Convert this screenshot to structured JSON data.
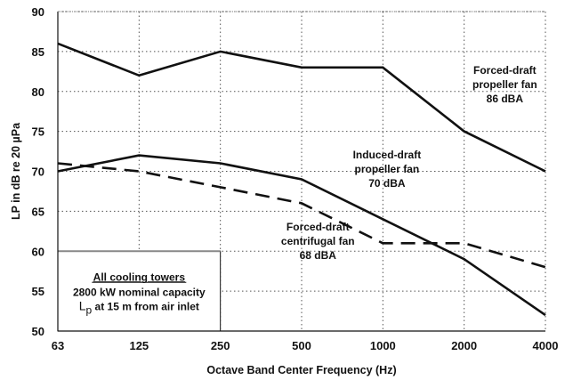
{
  "chart_data": {
    "type": "line",
    "title": "",
    "xlabel": "Octave Band Center Frequency (Hz)",
    "ylabel": "LP in dB re 20 µPa",
    "categories": [
      "63",
      "125",
      "250",
      "500",
      "1000",
      "2000",
      "4000"
    ],
    "ylim": [
      50,
      90
    ],
    "yticks": [
      50,
      55,
      60,
      65,
      70,
      75,
      80,
      85,
      90
    ],
    "grid": true,
    "series": [
      {
        "name": "Forced-draft propeller fan 86 dBA",
        "style": "solid",
        "values": [
          86,
          82,
          85,
          83,
          83,
          75,
          70
        ],
        "label_lines": [
          "Forced-draft",
          "propeller fan",
          "86 dBA"
        ]
      },
      {
        "name": "Induced-draft propeller fan 70 dBA",
        "style": "solid",
        "values": [
          70,
          72,
          71,
          69,
          64,
          59,
          52
        ],
        "label_lines": [
          "Induced-draft",
          "propeller fan",
          "70 dBA"
        ]
      },
      {
        "name": "Forced-draft centrifugal fan 68 dBA",
        "style": "dashed",
        "values": [
          71,
          70,
          68,
          66,
          61,
          61,
          58
        ],
        "label_lines": [
          "Forced-draft",
          "centrifugal fan",
          "68 dBA"
        ]
      }
    ],
    "info_box": {
      "title": "All cooling towers",
      "line2": "2800 kW nominal capacity",
      "line3_main": "L",
      "line3_sub": "p",
      "line3_rest": " at 15 m from air inlet"
    }
  },
  "colors": {
    "line": "#111111",
    "grid": "#555555",
    "box_border": "#888888"
  }
}
